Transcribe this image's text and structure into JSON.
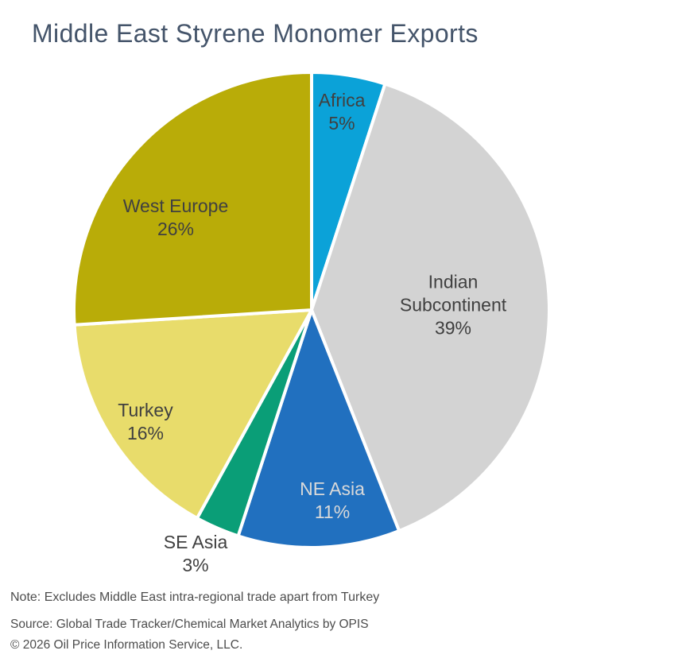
{
  "title": "Middle East Styrene Monomer Exports",
  "notes": {
    "note": "Note: Excludes Middle East intra-regional trade apart from Turkey",
    "source": "Source: Global Trade Tracker/Chemical Market Analytics by OPIS",
    "copyright": "© 2026 Oil Price Information Service, LLC."
  },
  "colors": {
    "background": "#FFFFFF",
    "title_text": "#44546A",
    "note_text": "#4D4D4D",
    "slice_border": "#FFFFFF",
    "label_dark": "#404040",
    "label_light": "#D9D9D9"
  },
  "chart_data": {
    "type": "pie",
    "title": "Middle East Styrene Monomer Exports",
    "start_angle_deg": 0,
    "direction": "clockwise",
    "legend_position": "none",
    "categories": [
      "Africa",
      "Indian Subcontinent",
      "NE Asia",
      "SE Asia",
      "Turkey",
      "West Europe"
    ],
    "values": [
      5,
      39,
      11,
      3,
      16,
      26
    ],
    "slices": [
      {
        "name": "Africa",
        "value": 5,
        "pct_label": "5%",
        "color": "#0BA2D8",
        "label_color": "#404040",
        "label_placement": "inside"
      },
      {
        "name": "Indian Subcontinent",
        "value": 39,
        "pct_label": "39%",
        "color": "#D3D3D3",
        "label_color": "#404040",
        "label_placement": "inside"
      },
      {
        "name": "NE Asia",
        "value": 11,
        "pct_label": "11%",
        "color": "#2170BF",
        "label_color": "#D9D9D9",
        "label_placement": "inside"
      },
      {
        "name": "SE Asia",
        "value": 3,
        "pct_label": "3%",
        "color": "#0A9E77",
        "label_color": "#404040",
        "label_placement": "outside"
      },
      {
        "name": "Turkey",
        "value": 16,
        "pct_label": "16%",
        "color": "#E8DC6B",
        "label_color": "#404040",
        "label_placement": "inside"
      },
      {
        "name": "West Europe",
        "value": 26,
        "pct_label": "26%",
        "color": "#B9AC08",
        "label_color": "#404040",
        "label_placement": "inside"
      }
    ]
  }
}
